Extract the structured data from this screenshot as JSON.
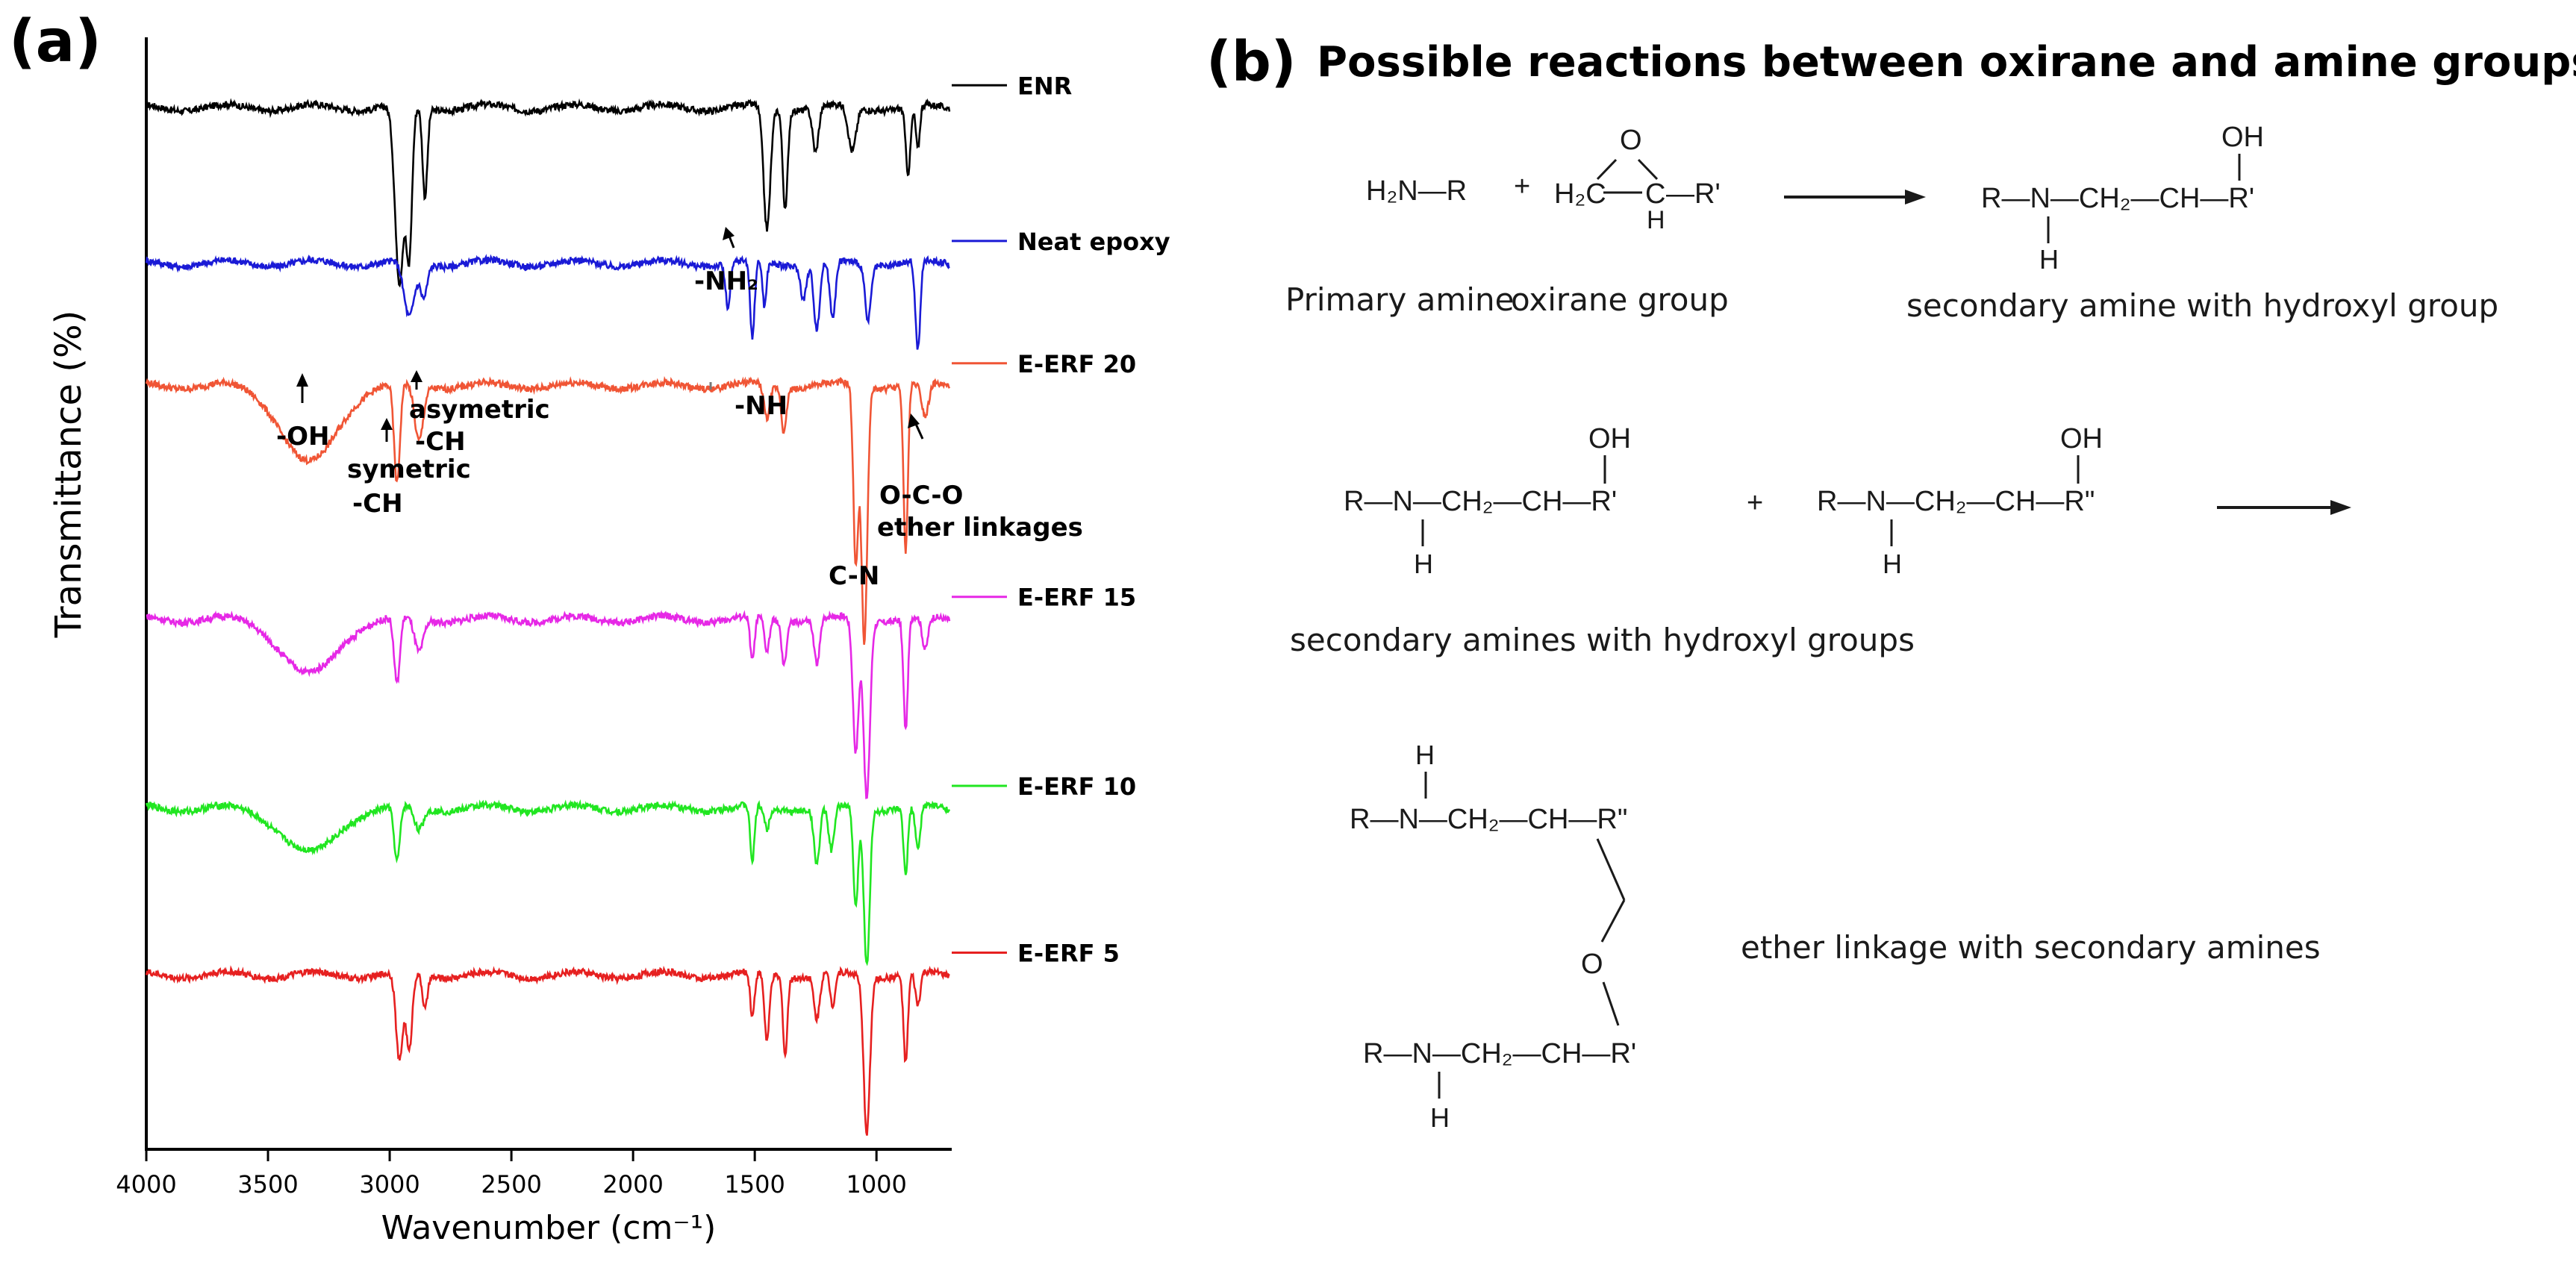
{
  "panel_a": {
    "label": "(a)"
  },
  "panel_b": {
    "label": "(b)",
    "title": "Possible reactions between oxirane and amine groups",
    "reaction1": {
      "amine": "H₂N—R",
      "plus": "+",
      "epoxide_left": "H₂C",
      "epoxide_c": "C",
      "epoxide_r": "—R'",
      "epoxide_h": "H",
      "epoxide_o": "O",
      "product_chain": "R—N—CH₂—CH—R'",
      "product_oh": "OH",
      "product_h": "H",
      "label_amine": "Primary amine",
      "label_oxirane": "oxirane group",
      "label_product": "secondary amine with hydroxyl group"
    },
    "reaction2": {
      "mol1_chain": "R—N—CH₂—CH—R'",
      "mol1_oh": "OH",
      "mol1_h": "H",
      "plus": "+",
      "mol2_chain": "R—N—CH₂—CH—R\"",
      "mol2_oh": "OH",
      "mol2_h": "H",
      "label": "secondary amines with hydroxyl groups"
    },
    "reaction3": {
      "top_h": "H",
      "top_chain": "R—N—CH₂—CH—R\"",
      "ether_o": "O",
      "bottom_chain": "R—N—CH₂—CH—R'",
      "bottom_h": "H",
      "label": "ether linkage with secondary amines"
    }
  },
  "chart_data": {
    "type": "line",
    "title": "",
    "xlabel": "Wavenumber (cm⁻¹)",
    "ylabel": "Transmittance (%)",
    "xlim": [
      4000,
      700
    ],
    "x_reversed": true,
    "xticks": [
      4000,
      3500,
      3000,
      2500,
      2000,
      1500,
      1000
    ],
    "y_ticks_shown": false,
    "grid": false,
    "legend_placement": "right of each curve",
    "series": [
      {
        "name": "ENR",
        "color": "#000000",
        "offset": 0.93,
        "peaks": [
          [
            2960,
            0.16,
            18
          ],
          [
            2920,
            0.13,
            12
          ],
          [
            2855,
            0.08,
            10
          ],
          [
            1450,
            0.11,
            14
          ],
          [
            1375,
            0.09,
            10
          ],
          [
            1250,
            0.04,
            12
          ],
          [
            1100,
            0.04,
            16
          ],
          [
            870,
            0.06,
            10
          ],
          [
            830,
            0.04,
            8
          ]
        ]
      },
      {
        "name": "Neat epoxy",
        "color": "#1a1ad6",
        "offset": 0.79,
        "peaks": [
          [
            2920,
            0.05,
            22
          ],
          [
            2860,
            0.03,
            14
          ],
          [
            1610,
            0.04,
            10
          ],
          [
            1510,
            0.07,
            9
          ],
          [
            1460,
            0.04,
            8
          ],
          [
            1300,
            0.03,
            12
          ],
          [
            1245,
            0.06,
            12
          ],
          [
            1180,
            0.05,
            12
          ],
          [
            1035,
            0.05,
            12
          ],
          [
            830,
            0.08,
            10
          ]
        ]
      },
      {
        "name": "E-ERF 20",
        "color": "#f05535",
        "offset": 0.68,
        "peaks": [
          [
            3330,
            0.07,
            110
          ],
          [
            2970,
            0.09,
            12
          ],
          [
            2880,
            0.05,
            18
          ],
          [
            1450,
            0.03,
            12
          ],
          [
            1380,
            0.04,
            10
          ],
          [
            1085,
            0.16,
            10
          ],
          [
            1050,
            0.23,
            12
          ],
          [
            880,
            0.15,
            9
          ],
          [
            800,
            0.03,
            14
          ]
        ]
      },
      {
        "name": "E-ERF 15",
        "color": "#e628e6",
        "offset": 0.47,
        "peaks": [
          [
            3330,
            0.05,
            110
          ],
          [
            2970,
            0.06,
            12
          ],
          [
            2880,
            0.03,
            18
          ],
          [
            1510,
            0.04,
            9
          ],
          [
            1450,
            0.03,
            10
          ],
          [
            1380,
            0.04,
            10
          ],
          [
            1245,
            0.04,
            12
          ],
          [
            1085,
            0.12,
            12
          ],
          [
            1040,
            0.16,
            13
          ],
          [
            880,
            0.1,
            9
          ],
          [
            800,
            0.03,
            12
          ]
        ]
      },
      {
        "name": "E-ERF 10",
        "color": "#21e621",
        "offset": 0.3,
        "peaks": [
          [
            3330,
            0.04,
            110
          ],
          [
            2970,
            0.05,
            12
          ],
          [
            2880,
            0.02,
            18
          ],
          [
            1510,
            0.05,
            9
          ],
          [
            1450,
            0.02,
            10
          ],
          [
            1245,
            0.05,
            12
          ],
          [
            1185,
            0.04,
            12
          ],
          [
            1085,
            0.09,
            10
          ],
          [
            1040,
            0.14,
            12
          ],
          [
            880,
            0.06,
            9
          ],
          [
            830,
            0.04,
            10
          ]
        ]
      },
      {
        "name": "E-ERF 5",
        "color": "#e62020",
        "offset": 0.15,
        "peaks": [
          [
            2960,
            0.08,
            14
          ],
          [
            2920,
            0.07,
            12
          ],
          [
            2855,
            0.03,
            10
          ],
          [
            1510,
            0.04,
            9
          ],
          [
            1450,
            0.06,
            10
          ],
          [
            1375,
            0.07,
            9
          ],
          [
            1245,
            0.04,
            12
          ],
          [
            1180,
            0.03,
            10
          ],
          [
            1040,
            0.14,
            13
          ],
          [
            880,
            0.08,
            9
          ],
          [
            830,
            0.03,
            10
          ]
        ]
      }
    ],
    "annotations": [
      {
        "text": "-NH₂",
        "series": "Neat epoxy"
      },
      {
        "text": "-OH",
        "series": "E-ERF 20"
      },
      {
        "text": "symetric",
        "text2": "-CH",
        "series": "E-ERF 20"
      },
      {
        "text": "asymetric",
        "text2": "-CH",
        "series": "E-ERF 20"
      },
      {
        "text": "-NH",
        "series": "E-ERF 20"
      },
      {
        "text": "C-N",
        "series": "E-ERF 20"
      },
      {
        "text": "O-C-O",
        "text2": "ether linkages",
        "series": "E-ERF 20"
      }
    ]
  }
}
